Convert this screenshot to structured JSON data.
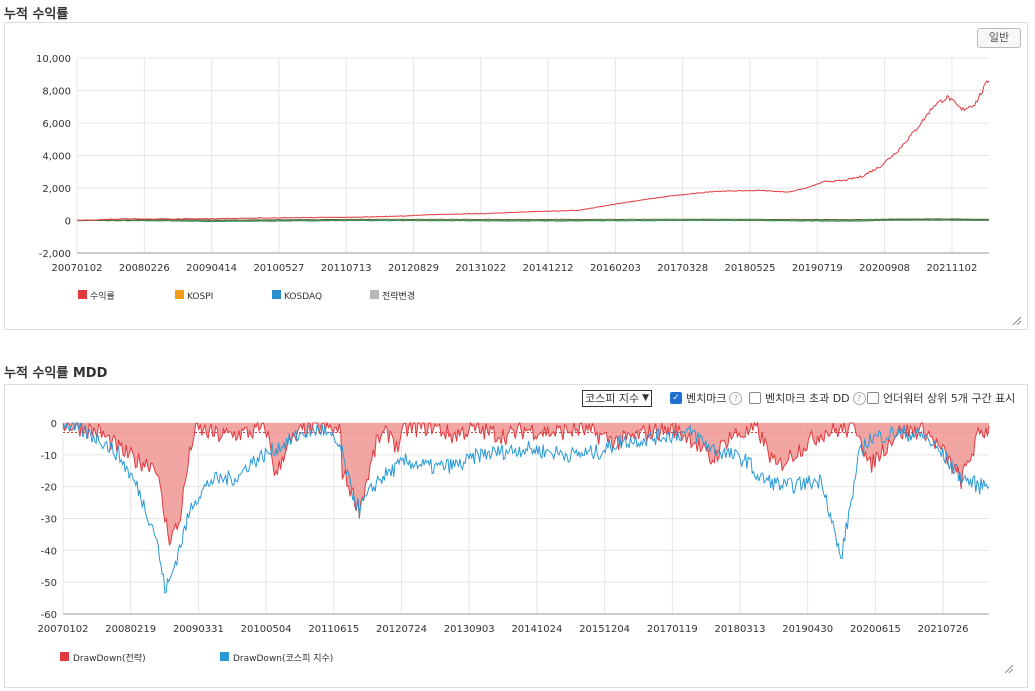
{
  "section1": {
    "title": "누적 수익률",
    "mode_button": "일반"
  },
  "section2": {
    "title": "누적 수익률 MDD",
    "index_select": "코스피 지수",
    "benchmark_label": "벤치마크",
    "excess_dd_label": "벤치마크 초과 DD",
    "underwater_label": "언더워터 상위 5개 구간 표시"
  },
  "colors": {
    "strategy": "#e0393e",
    "kospi": "#f39c12",
    "kosdaq": "#2a8fd0",
    "change": "#b8b8b8",
    "dd_fill": "#f19c9a",
    "kospi_dd": "#2a9ad6"
  },
  "chart_data": [
    {
      "type": "line",
      "title": "누적 수익률",
      "ylim": [
        -2000,
        10000
      ],
      "yticks": [
        "10,000",
        "8,000",
        "6,000",
        "4,000",
        "2,000",
        "0",
        "-2,000"
      ],
      "xticks": [
        "20070102",
        "20080226",
        "20090414",
        "20100527",
        "20110713",
        "20120829",
        "20131022",
        "20141212",
        "20160203",
        "20170328",
        "20180525",
        "20190719",
        "20200908",
        "20211102"
      ],
      "legend": [
        "수익률",
        "KOSPI",
        "KOSDAQ",
        "전략변경"
      ],
      "series": [
        {
          "name": "수익률",
          "t": [
            0,
            0.05,
            0.1,
            0.15,
            0.2,
            0.25,
            0.3,
            0.35,
            0.4,
            0.45,
            0.5,
            0.55,
            0.6,
            0.63,
            0.65,
            0.7,
            0.75,
            0.78,
            0.8,
            0.82,
            0.84,
            0.86,
            0.88,
            0.9,
            0.92,
            0.94,
            0.955,
            0.97,
            0.985,
            1.0
          ],
          "values": [
            0,
            100,
            90,
            110,
            150,
            180,
            200,
            260,
            380,
            430,
            550,
            620,
            1100,
            1350,
            1500,
            1800,
            1850,
            1750,
            2000,
            2400,
            2450,
            2700,
            3300,
            4300,
            5600,
            7100,
            7600,
            6800,
            7200,
            8700
          ]
        },
        {
          "name": "KOSPI",
          "t": [
            0,
            0.1,
            0.15,
            0.3,
            0.5,
            0.7,
            0.85,
            0.9,
            0.95,
            1.0
          ],
          "values": [
            0,
            60,
            20,
            70,
            60,
            80,
            50,
            90,
            100,
            70
          ]
        },
        {
          "name": "KOSDAQ",
          "t": [
            0,
            0.1,
            0.15,
            0.3,
            0.5,
            0.7,
            0.85,
            0.9,
            0.95,
            1.0
          ],
          "values": [
            0,
            -20,
            -60,
            0,
            -30,
            10,
            -40,
            40,
            60,
            20
          ]
        }
      ]
    },
    {
      "type": "area",
      "title": "누적 수익률 MDD",
      "ylim": [
        -60,
        0
      ],
      "yticks": [
        "0",
        "-10",
        "-20",
        "-30",
        "-40",
        "-50",
        "-60"
      ],
      "xticks": [
        "20070102",
        "20080219",
        "20090331",
        "20100504",
        "20110615",
        "20120724",
        "20130903",
        "20141024",
        "20151204",
        "20170119",
        "20180313",
        "20190430",
        "20200615",
        "20210726"
      ],
      "legend": [
        "DrawDown(전략)",
        "DrawDown(코스피 지수)"
      ],
      "series": [
        {
          "name": "DrawDown(전략)",
          "t": [
            0,
            0.04,
            0.06,
            0.08,
            0.1,
            0.11,
            0.115,
            0.125,
            0.135,
            0.14,
            0.145,
            0.17,
            0.2,
            0.22,
            0.23,
            0.24,
            0.26,
            0.28,
            0.3,
            0.3,
            0.32,
            0.34,
            0.355,
            0.36,
            0.37,
            0.4,
            0.42,
            0.43,
            0.44,
            0.48,
            0.5,
            0.53,
            0.56,
            0.6,
            0.63,
            0.66,
            0.68,
            0.7,
            0.72,
            0.74,
            0.75,
            0.77,
            0.8,
            0.82,
            0.84,
            0.86,
            0.87,
            0.9,
            0.93,
            0.95,
            0.97,
            0.99,
            1.0
          ],
          "values": [
            0,
            -3,
            -8,
            -12,
            -13,
            -30,
            -36,
            -32,
            -13,
            -5,
            -2,
            -4,
            -3,
            -2,
            -17,
            -8,
            -2,
            -1,
            -3,
            -14,
            -27,
            -5,
            -3,
            -8,
            -2,
            -1,
            -4,
            -3,
            -2,
            -4,
            -2,
            -3,
            -2,
            -6,
            -3,
            -2,
            -5,
            -12,
            -4,
            -3,
            -2,
            -14,
            -7,
            -3,
            -2,
            -2,
            -14,
            -3,
            -2,
            -9,
            -18,
            -3,
            -2
          ]
        },
        {
          "name": "DrawDown(코스피 지수)",
          "t": [
            0,
            0.04,
            0.06,
            0.08,
            0.1,
            0.11,
            0.115,
            0.125,
            0.135,
            0.14,
            0.16,
            0.19,
            0.2,
            0.23,
            0.26,
            0.28,
            0.3,
            0.31,
            0.32,
            0.34,
            0.37,
            0.4,
            0.43,
            0.45,
            0.5,
            0.55,
            0.58,
            0.6,
            0.63,
            0.65,
            0.68,
            0.7,
            0.72,
            0.74,
            0.75,
            0.78,
            0.82,
            0.84,
            0.86,
            0.87,
            0.9,
            0.93,
            0.95,
            0.97,
            0.99,
            1.0
          ],
          "values": [
            0,
            -5,
            -10,
            -20,
            -35,
            -52,
            -50,
            -40,
            -30,
            -25,
            -18,
            -17,
            -13,
            -8,
            -3,
            -2,
            -8,
            -20,
            -27,
            -18,
            -12,
            -14,
            -13,
            -10,
            -8,
            -10,
            -9,
            -6,
            -5,
            -4,
            -3,
            -8,
            -10,
            -12,
            -17,
            -20,
            -18,
            -43,
            -10,
            -5,
            -3,
            -4,
            -10,
            -17,
            -20,
            -18
          ]
        }
      ]
    }
  ]
}
